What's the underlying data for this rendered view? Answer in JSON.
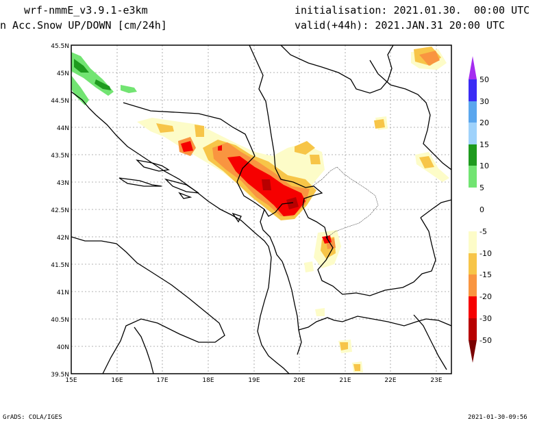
{
  "header": {
    "model": "wrf-nmmE_v3.9.1-e3km",
    "field": "n Acc.Snow UP/DOWN [cm/24h]",
    "init": "initialisation: 2021.01.30.  00:00 UTC",
    "valid": "valid(+44h): 2021.JAN.31 20:00 UTC"
  },
  "footer": {
    "credit": "GrADS: COLA/IGES",
    "timestamp": "2021-01-30-09:56"
  },
  "map": {
    "lat_labels": [
      "45.5N",
      "45N",
      "44.5N",
      "44N",
      "43.5N",
      "43N",
      "42.5N",
      "42N",
      "41.5N",
      "41N",
      "40.5N",
      "40N",
      "39.5N"
    ],
    "lon_labels": [
      "15E",
      "16E",
      "17E",
      "18E",
      "19E",
      "20E",
      "21E",
      "22E",
      "23E"
    ]
  },
  "colorbar": {
    "labels": [
      "50",
      "30",
      "20",
      "15",
      "10",
      "5",
      "0",
      "-5",
      "-10",
      "-15",
      "-20",
      "-30",
      "-50"
    ],
    "colors": {
      "c50_30": "#3a2cf5",
      "c30_20": "#5aa6ee",
      "c20_15": "#9fd2fb",
      "c15_10": "#1e9a1e",
      "c10_5": "#72e472",
      "c5_0": "#ffffff",
      "c0_m5": "#fdfcc8",
      "cm5_m10": "#f7c548",
      "cm10_m15": "#f99540",
      "cm15_m20": "#f60000",
      "cm20_m30": "#b80000",
      "top_arrow": "#a52cf0",
      "bottom_arrow": "#7a0000"
    }
  }
}
